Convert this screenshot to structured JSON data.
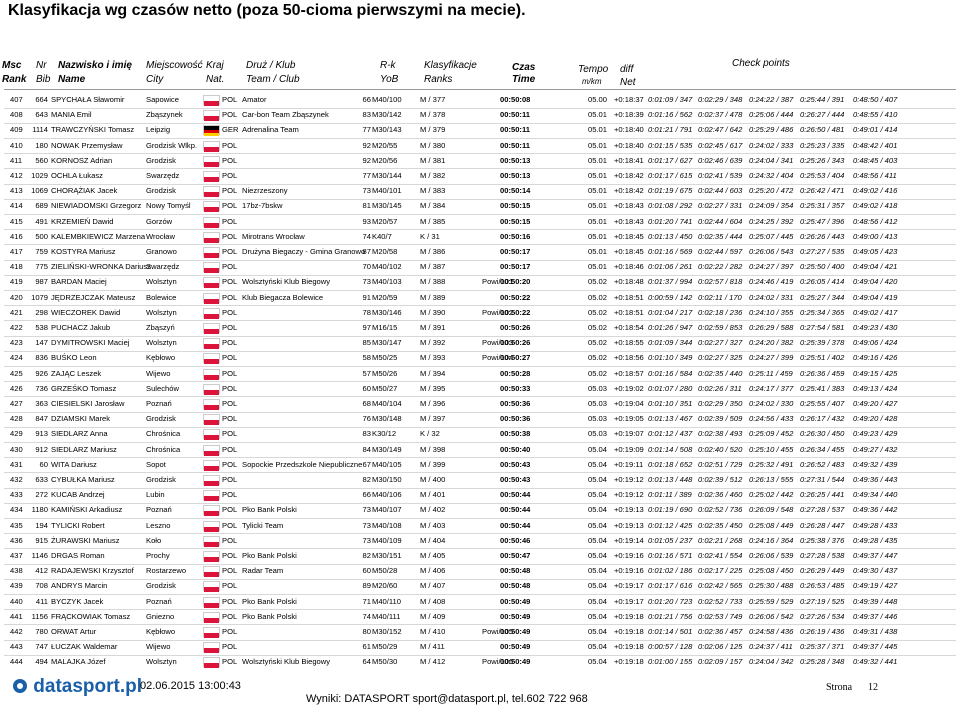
{
  "title": "Klasyfikacja wg czasów netto (poza 50-cioma pierwszymi na mecie).",
  "header": {
    "rank_pl": "Msc",
    "rank_en": "Rank",
    "bib_pl": "Nr",
    "bib_en": "Bib",
    "name_pl": "Nazwisko i imię",
    "name_en": "Name",
    "city_pl": "Miejscowość",
    "city_en": "City",
    "nat_pl": "Kraj",
    "nat_en": "Nat.",
    "team_pl": "Druż / Klub",
    "team_en": "Team / Club",
    "yob_pl": "R-k",
    "yob_en": "YoB",
    "ranks_pl": "Klasyfikacje",
    "ranks_en": "Ranks",
    "time_pl": "Czas",
    "time_en": "Time",
    "tempo_pl": "Tempo",
    "tempo_en": "m/km",
    "diff_pl": "diff",
    "diff_en": "Net",
    "checkpoints": "Check points"
  },
  "table": {
    "rows": [
      [
        "407",
        "664",
        "SPYCHAŁA Sławomir",
        "Sapowice",
        "POL",
        "Amator",
        "66",
        "M40/100",
        "M / 377",
        null,
        "00:50:08",
        "05.00",
        "+0:18:37",
        "0:01:09 / 347",
        "0:02:29 / 348",
        "0:24:22 / 387",
        "0:25:44 / 391",
        "0:48:50 / 407"
      ],
      [
        "408",
        "643",
        "MANIA Emil",
        "Zbąszynek",
        "POL",
        "Car-bon Team Zbąszynek",
        "83",
        "M30/142",
        "M / 378",
        null,
        "00:50:11",
        "05.01",
        "+0:18:39",
        "0:01:16 / 562",
        "0:02:37 / 478",
        "0:25:06 / 444",
        "0:26:27 / 444",
        "0:48:55 / 410"
      ],
      [
        "409",
        "1114",
        "TRAWCZYŃSKI Tomasz",
        "Leipzig",
        "GER",
        "Adrenalina Team",
        "77",
        "M30/143",
        "M / 379",
        null,
        "00:50:11",
        "05.01",
        "+0:18:40",
        "0:01:21 / 791",
        "0:02:47 / 642",
        "0:25:29 / 486",
        "0:26:50 / 481",
        "0:49:01 / 414"
      ],
      [
        "410",
        "180",
        "NOWAK Przemysław",
        "Grodzisk Wlkp.",
        "POL",
        null,
        "92",
        "M20/55",
        "M / 380",
        null,
        "00:50:11",
        "05.01",
        "+0:18:40",
        "0:01:15 / 535",
        "0:02:45 / 617",
        "0:24:02 / 333",
        "0:25:23 / 335",
        "0:48:42 / 401"
      ],
      [
        "411",
        "560",
        "KORNOSZ Adrian",
        "Grodzisk",
        "POL",
        null,
        "92",
        "M20/56",
        "M / 381",
        null,
        "00:50:13",
        "05.01",
        "+0:18:41",
        "0:01:17 / 627",
        "0:02:46 / 639",
        "0:24:04 / 341",
        "0:25:26 / 343",
        "0:48:45 / 403"
      ],
      [
        "412",
        "1029",
        "OCHLA Łukasz",
        "Swarzędz",
        "POL",
        null,
        "77",
        "M30/144",
        "M / 382",
        null,
        "00:50:13",
        "05.01",
        "+0:18:42",
        "0:01:17 / 615",
        "0:02:41 / 539",
        "0:24:32 / 404",
        "0:25:53 / 404",
        "0:48:56 / 411"
      ],
      [
        "413",
        "1069",
        "CHORĄŻIAK Jacek",
        "Grodzisk",
        "POL",
        "Niezrzeszony",
        "73",
        "M40/101",
        "M / 383",
        null,
        "00:50:14",
        "05.01",
        "+0:18:42",
        "0:01:19 / 675",
        "0:02:44 / 603",
        "0:25:20 / 472",
        "0:26:42 / 471",
        "0:49:02 / 416"
      ],
      [
        "414",
        "689",
        "NIEWIADOMSKI Grzegorz",
        "Nowy Tomyśl",
        "POL",
        "17bz-7bskw",
        "81",
        "M30/145",
        "M / 384",
        null,
        "00:50:15",
        "05.01",
        "+0:18:43",
        "0:01:08 / 292",
        "0:02:27 / 331",
        "0:24:09 / 354",
        "0:25:31 / 357",
        "0:49:02 / 418"
      ],
      [
        "415",
        "491",
        "KRZEMIEŃ Dawid",
        "Gorzów",
        "POL",
        null,
        "93",
        "M20/57",
        "M / 385",
        null,
        "00:50:15",
        "05.01",
        "+0:18:43",
        "0:01:20 / 741",
        "0:02:44 / 604",
        "0:24:25 / 392",
        "0:25:47 / 396",
        "0:48:56 / 412"
      ],
      [
        "416",
        "500",
        "KALEMBKIEWICZ Marzena",
        "Wrocław",
        "POL",
        "Mirotrans Wrocław",
        "74",
        "K40/7",
        "K / 31",
        null,
        "00:50:16",
        "05.01",
        "+0:18:45",
        "0:01:13 / 450",
        "0:02:35 / 444",
        "0:25:07 / 445",
        "0:26:26 / 443",
        "0:49:00 / 413"
      ],
      [
        "417",
        "759",
        "KOSTYRA Mariusz",
        "Granowo",
        "POL",
        "Drużyna Biegaczy - Gmina Granowo",
        "87",
        "M20/58",
        "M / 386",
        null,
        "00:50:17",
        "05.01",
        "+0:18:45",
        "0:01:16 / 569",
        "0:02:44 / 597",
        "0:26:06 / 543",
        "0:27:27 / 535",
        "0:49:05 / 423"
      ],
      [
        "418",
        "775",
        "ZIELIŃSKI-WRONKA Dariusz",
        "Swarzędz",
        "POL",
        null,
        "70",
        "M40/102",
        "M / 387",
        null,
        "00:50:17",
        "05.01",
        "+0:18:46",
        "0:01:06 / 261",
        "0:02:22 / 282",
        "0:24:27 / 397",
        "0:25:50 / 400",
        "0:49:04 / 421"
      ],
      [
        "419",
        "987",
        "BARDAN Maciej",
        "Wolsztyn",
        "POL",
        "Wolsztyński Klub Biegowy",
        "73",
        "M40/103",
        "M / 388",
        "Powi/101",
        "00:50:20",
        "05.02",
        "+0:18:48",
        "0:01:37 / 994",
        "0:02:57 / 818",
        "0:24:46 / 419",
        "0:26:05 / 414",
        "0:49:04 / 420"
      ],
      [
        "420",
        "1079",
        "JĘDRZEJCZAK Mateusz",
        "Bolewice",
        "POL",
        "Klub Biegacza Bolewice",
        "91",
        "M20/59",
        "M / 389",
        null,
        "00:50:22",
        "05.02",
        "+0:18:51",
        "0:00:59 / 142",
        "0:02:11 / 170",
        "0:24:02 / 331",
        "0:25:27 / 344",
        "0:49:04 / 419"
      ],
      [
        "421",
        "298",
        "WIECZOREK Dawid",
        "Wolsztyn",
        "POL",
        null,
        "78",
        "M30/146",
        "M / 390",
        "Powi/102",
        "00:50:22",
        "05.02",
        "+0:18:51",
        "0:01:04 / 217",
        "0:02:18 / 236",
        "0:24:10 / 355",
        "0:25:34 / 365",
        "0:49:02 / 417"
      ],
      [
        "422",
        "538",
        "PUCHACZ Jakub",
        "Zbąszyń",
        "POL",
        null,
        "97",
        "M16/15",
        "M / 391",
        null,
        "00:50:26",
        "05.02",
        "+0:18:54",
        "0:01:26 / 947",
        "0:02:59 / 853",
        "0:26:29 / 588",
        "0:27:54 / 581",
        "0:49:23 / 430"
      ],
      [
        "423",
        "147",
        "DYMITROWSKI Maciej",
        "Wolsztyn",
        "POL",
        null,
        "85",
        "M30/147",
        "M / 392",
        "Powi/103",
        "00:50:26",
        "05.02",
        "+0:18:55",
        "0:01:09 / 344",
        "0:02:27 / 327",
        "0:24:20 / 382",
        "0:25:39 / 378",
        "0:49:06 / 424"
      ],
      [
        "424",
        "836",
        "BUŚKO Leon",
        "Kębłowo",
        "POL",
        null,
        "58",
        "M50/25",
        "M / 393",
        "Powi/104",
        "00:50:27",
        "05.02",
        "+0:18:56",
        "0:01:10 / 349",
        "0:02:27 / 325",
        "0:24:27 / 399",
        "0:25:51 / 402",
        "0:49:16 / 426"
      ],
      [
        "425",
        "926",
        "ZAJĄC Leszek",
        "Wijewo",
        "POL",
        null,
        "57",
        "M50/26",
        "M / 394",
        null,
        "00:50:28",
        "05.02",
        "+0:18:57",
        "0:01:16 / 584",
        "0:02:35 / 440",
        "0:25:11 / 459",
        "0:26:36 / 459",
        "0:49:15 / 425"
      ],
      [
        "426",
        "736",
        "GRZEŚKO Tomasz",
        "Sulechów",
        "POL",
        null,
        "60",
        "M50/27",
        "M / 395",
        null,
        "00:50:33",
        "05.03",
        "+0:19:02",
        "0:01:07 / 280",
        "0:02:26 / 311",
        "0:24:17 / 377",
        "0:25:41 / 383",
        "0:49:13 / 424"
      ],
      [
        "427",
        "363",
        "CIESIELSKI Jarosław",
        "Poznań",
        "POL",
        null,
        "68",
        "M40/104",
        "M / 396",
        null,
        "00:50:36",
        "05.03",
        "+0:19:04",
        "0:01:10 / 351",
        "0:02:29 / 350",
        "0:24:02 / 330",
        "0:25:55 / 407",
        "0:49:20 / 427"
      ],
      [
        "428",
        "847",
        "DZIAMSKI Marek",
        "Grodzisk",
        "POL",
        null,
        "76",
        "M30/148",
        "M / 397",
        null,
        "00:50:36",
        "05.03",
        "+0:19:05",
        "0:01:13 / 467",
        "0:02:39 / 509",
        "0:24:56 / 433",
        "0:26:17 / 432",
        "0:49:20 / 428"
      ],
      [
        "429",
        "913",
        "SIEDLARZ Anna",
        "Chrośnica",
        "POL",
        null,
        "83",
        "K30/12",
        "K / 32",
        null,
        "00:50:38",
        "05.03",
        "+0:19:07",
        "0:01:12 / 437",
        "0:02:38 / 493",
        "0:25:09 / 452",
        "0:26:30 / 450",
        "0:49:23 / 429"
      ],
      [
        "430",
        "912",
        "SIEDLARZ Mariusz",
        "Chrośnica",
        "POL",
        null,
        "84",
        "M30/149",
        "M / 398",
        null,
        "00:50:40",
        "05.04",
        "+0:19:09",
        "0:01:14 / 508",
        "0:02:40 / 520",
        "0:25:10 / 455",
        "0:26:34 / 455",
        "0:49:27 / 432"
      ],
      [
        "431",
        "60",
        "WITA Dariusz",
        "Sopot",
        "POL",
        "Sopockie Przedszkole Niepubliczne",
        "67",
        "M40/105",
        "M / 399",
        null,
        "00:50:43",
        "05.04",
        "+0:19:11",
        "0:01:18 / 652",
        "0:02:51 / 729",
        "0:25:32 / 491",
        "0:26:52 / 483",
        "0:49:32 / 439"
      ],
      [
        "432",
        "633",
        "CYBUŁKA Mariusz",
        "Grodzisk",
        "POL",
        null,
        "82",
        "M30/150",
        "M / 400",
        null,
        "00:50:43",
        "05.04",
        "+0:19:12",
        "0:01:13 / 448",
        "0:02:39 / 512",
        "0:26:13 / 555",
        "0:27:31 / 544",
        "0:49:36 / 443"
      ],
      [
        "433",
        "272",
        "KUCAB Andrzej",
        "Lubin",
        "POL",
        null,
        "66",
        "M40/106",
        "M / 401",
        null,
        "00:50:44",
        "05.04",
        "+0:19:12",
        "0:01:11 / 389",
        "0:02:36 / 460",
        "0:25:02 / 442",
        "0:26:25 / 441",
        "0:49:34 / 440"
      ],
      [
        "434",
        "1180",
        "KAMIŃSKI Arkadiusz",
        "Poznań",
        "POL",
        "Pko Bank Polski",
        "73",
        "M40/107",
        "M / 402",
        null,
        "00:50:44",
        "05.04",
        "+0:19:13",
        "0:01:19 / 690",
        "0:02:52 / 736",
        "0:26:09 / 548",
        "0:27:28 / 537",
        "0:49:36 / 442"
      ],
      [
        "435",
        "194",
        "TYLICKI Robert",
        "Leszno",
        "POL",
        "Tylicki Team",
        "73",
        "M40/108",
        "M / 403",
        null,
        "00:50:44",
        "05.04",
        "+0:19:13",
        "0:01:12 / 425",
        "0:02:35 / 450",
        "0:25:08 / 449",
        "0:26:28 / 447",
        "0:49:28 / 433"
      ],
      [
        "436",
        "915",
        "ŻURAWSKI Mariusz",
        "Koło",
        "POL",
        null,
        "73",
        "M40/109",
        "M / 404",
        null,
        "00:50:46",
        "05.04",
        "+0:19:14",
        "0:01:05 / 237",
        "0:02:21 / 268",
        "0:24:16 / 364",
        "0:25:38 / 376",
        "0:49:28 / 435"
      ],
      [
        "437",
        "1146",
        "DRGAS Roman",
        "Prochy",
        "POL",
        "Pko Bank Polski",
        "82",
        "M30/151",
        "M / 405",
        null,
        "00:50:47",
        "05.04",
        "+0:19:16",
        "0:01:16 / 571",
        "0:02:41 / 554",
        "0:26:06 / 539",
        "0:27:28 / 538",
        "0:49:37 / 447"
      ],
      [
        "438",
        "412",
        "RADAJEWSKI Krzysztof",
        "Rostarzewo",
        "POL",
        "Radar Team",
        "60",
        "M50/28",
        "M / 406",
        null,
        "00:50:48",
        "05.04",
        "+0:19:16",
        "0:01:02 / 186",
        "0:02:17 / 225",
        "0:25:08 / 450",
        "0:26:29 / 449",
        "0:49:30 / 437"
      ],
      [
        "439",
        "708",
        "ANDRYS Marcin",
        "Grodzisk",
        "POL",
        null,
        "89",
        "M20/60",
        "M / 407",
        null,
        "00:50:48",
        "05.04",
        "+0:19:17",
        "0:01:17 / 616",
        "0:02:42 / 565",
        "0:25:30 / 488",
        "0:26:53 / 485",
        "0:49:19 / 427"
      ],
      [
        "440",
        "411",
        "BYCZYK Jacek",
        "Poznań",
        "POL",
        "Pko Bank Polski",
        "71",
        "M40/110",
        "M / 408",
        null,
        "00:50:49",
        "05.04",
        "+0:19:17",
        "0:01:20 / 723",
        "0:02:52 / 733",
        "0:25:59 / 529",
        "0:27:19 / 525",
        "0:49:39 / 448"
      ],
      [
        "441",
        "1156",
        "FRĄCKOWIAK Tomasz",
        "Gniezno",
        "POL",
        "Pko Bank Polski",
        "74",
        "M40/111",
        "M / 409",
        null,
        "00:50:49",
        "05.04",
        "+0:19:18",
        "0:01:21 / 756",
        "0:02:53 / 749",
        "0:26:06 / 542",
        "0:27:26 / 534",
        "0:49:37 / 446"
      ],
      [
        "442",
        "780",
        "ORWAT Artur",
        "Kębłowo",
        "POL",
        null,
        "80",
        "M30/152",
        "M / 410",
        "Powi/105",
        "00:50:49",
        "05.04",
        "+0:19:18",
        "0:01:14 / 501",
        "0:02:36 / 457",
        "0:24:58 / 436",
        "0:26:19 / 436",
        "0:49:31 / 438"
      ],
      [
        "443",
        "747",
        "ŁUCZAK Waldemar",
        "Wijewo",
        "POL",
        null,
        "61",
        "M50/29",
        "M / 411",
        null,
        "00:50:49",
        "05.04",
        "+0:19:18",
        "0:00:57 / 128",
        "0:02:06 / 125",
        "0:24:37 / 411",
        "0:25:37 / 371",
        "0:49:37 / 445"
      ],
      [
        "444",
        "494",
        "MALAJKA Józef",
        "Wolsztyn",
        "POL",
        "Wolsztyński Klub Biegowy",
        "64",
        "M50/30",
        "M / 412",
        "Powi/106",
        "00:50:49",
        "05.04",
        "+0:19:18",
        "0:01:00 / 155",
        "0:02:09 / 157",
        "0:24:04 / 342",
        "0:25:28 / 348",
        "0:49:32 / 441"
      ]
    ]
  },
  "footer": {
    "logo": "datasport.pl",
    "timestamp": "02.06.2015 13:00:43",
    "contact": "Wyniki: DATASPORT sport@datasport.pl, tel.602 722 968",
    "page_label": "Strona",
    "page_number": "12"
  }
}
